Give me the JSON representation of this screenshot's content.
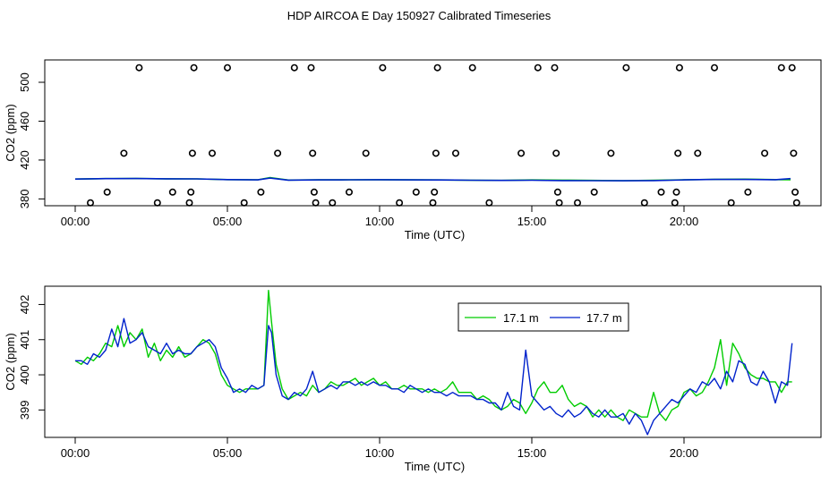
{
  "title": "HDP AIRCOA E  Day 150927  Calibrated Timeseries",
  "colors": {
    "green": "#00cc00",
    "blue": "#0022cc",
    "axis": "#000000"
  },
  "chart_data": [
    {
      "type": "scatter",
      "xlabel": "Time (UTC)",
      "ylabel": "CO2 (ppm)",
      "xlim": [
        -1.0,
        24.5
      ],
      "ylim": [
        373,
        523
      ],
      "xticks": [
        0,
        5,
        10,
        15,
        20
      ],
      "xtick_labels": [
        "00:00",
        "05:00",
        "10:00",
        "15:00",
        "20:00"
      ],
      "yticks": [
        380,
        420,
        460,
        500
      ],
      "ytick_labels": [
        "380",
        "420",
        "460",
        "500"
      ],
      "grid": false,
      "points": [
        {
          "x": 0.5,
          "y": 376
        },
        {
          "x": 1.05,
          "y": 387
        },
        {
          "x": 1.6,
          "y": 427
        },
        {
          "x": 2.1,
          "y": 515
        },
        {
          "x": 2.7,
          "y": 376
        },
        {
          "x": 3.2,
          "y": 387
        },
        {
          "x": 3.75,
          "y": 376
        },
        {
          "x": 3.8,
          "y": 387
        },
        {
          "x": 3.85,
          "y": 427
        },
        {
          "x": 3.9,
          "y": 515
        },
        {
          "x": 4.5,
          "y": 427
        },
        {
          "x": 5.0,
          "y": 515
        },
        {
          "x": 5.55,
          "y": 376
        },
        {
          "x": 6.1,
          "y": 387
        },
        {
          "x": 6.65,
          "y": 427
        },
        {
          "x": 7.2,
          "y": 515
        },
        {
          "x": 7.75,
          "y": 515
        },
        {
          "x": 7.8,
          "y": 427
        },
        {
          "x": 7.85,
          "y": 387
        },
        {
          "x": 7.9,
          "y": 376
        },
        {
          "x": 8.45,
          "y": 376
        },
        {
          "x": 9.0,
          "y": 387
        },
        {
          "x": 9.55,
          "y": 427
        },
        {
          "x": 10.1,
          "y": 515
        },
        {
          "x": 10.65,
          "y": 376
        },
        {
          "x": 11.2,
          "y": 387
        },
        {
          "x": 11.75,
          "y": 376
        },
        {
          "x": 11.8,
          "y": 387
        },
        {
          "x": 11.85,
          "y": 427
        },
        {
          "x": 11.9,
          "y": 515
        },
        {
          "x": 12.5,
          "y": 427
        },
        {
          "x": 13.05,
          "y": 515
        },
        {
          "x": 13.6,
          "y": 376
        },
        {
          "x": 14.65,
          "y": 427
        },
        {
          "x": 15.2,
          "y": 515
        },
        {
          "x": 15.75,
          "y": 515
        },
        {
          "x": 15.8,
          "y": 427
        },
        {
          "x": 15.85,
          "y": 387
        },
        {
          "x": 15.9,
          "y": 376
        },
        {
          "x": 16.5,
          "y": 376
        },
        {
          "x": 17.05,
          "y": 387
        },
        {
          "x": 17.6,
          "y": 427
        },
        {
          "x": 18.1,
          "y": 515
        },
        {
          "x": 18.7,
          "y": 376
        },
        {
          "x": 19.25,
          "y": 387
        },
        {
          "x": 19.7,
          "y": 376
        },
        {
          "x": 19.75,
          "y": 387
        },
        {
          "x": 19.8,
          "y": 427
        },
        {
          "x": 19.85,
          "y": 515
        },
        {
          "x": 20.45,
          "y": 427
        },
        {
          "x": 21.0,
          "y": 515
        },
        {
          "x": 21.55,
          "y": 376
        },
        {
          "x": 22.1,
          "y": 387
        },
        {
          "x": 22.65,
          "y": 427
        },
        {
          "x": 23.2,
          "y": 515
        },
        {
          "x": 23.55,
          "y": 515
        },
        {
          "x": 23.6,
          "y": 427
        },
        {
          "x": 23.65,
          "y": 387
        },
        {
          "x": 23.7,
          "y": 376
        }
      ],
      "series": [
        {
          "name": "17.1 m",
          "color": "#00cc00",
          "x": [
            0,
            1,
            2,
            3,
            4,
            5,
            6,
            6.4,
            7,
            8,
            9,
            10,
            11,
            12,
            13,
            14,
            15,
            16,
            17,
            18,
            19,
            20,
            21,
            22,
            23,
            23.5
          ],
          "y": [
            400.4,
            400.9,
            401.0,
            400.7,
            400.6,
            399.9,
            399.7,
            401.9,
            399.4,
            399.6,
            399.7,
            399.8,
            399.6,
            399.5,
            399.2,
            399.0,
            399.5,
            399.3,
            399.0,
            398.8,
            399.1,
            399.7,
            400.1,
            400.3,
            399.9,
            399.8
          ]
        },
        {
          "name": "17.7 m",
          "color": "#0022cc",
          "x": [
            0,
            1,
            2,
            3,
            4,
            5,
            6,
            6.4,
            7,
            8,
            9,
            10,
            11,
            12,
            13,
            14,
            15,
            16,
            17,
            18,
            19,
            20,
            21,
            22,
            23,
            23.5
          ],
          "y": [
            400.4,
            400.9,
            401.0,
            400.7,
            400.6,
            399.9,
            399.6,
            401.4,
            399.3,
            399.6,
            399.7,
            399.8,
            399.6,
            399.5,
            399.2,
            399.0,
            399.2,
            398.9,
            398.8,
            398.7,
            398.9,
            399.6,
            400.1,
            400.1,
            399.8,
            400.9
          ]
        }
      ]
    },
    {
      "type": "line",
      "xlabel": "Time (UTC)",
      "ylabel": "CO2 (ppm)",
      "xlim": [
        -1.0,
        24.5
      ],
      "ylim": [
        398.22,
        402.52
      ],
      "xticks": [
        0,
        5,
        10,
        15,
        20
      ],
      "xtick_labels": [
        "00:00",
        "05:00",
        "10:00",
        "15:00",
        "20:00"
      ],
      "yticks": [
        399,
        400,
        401,
        402
      ],
      "ytick_labels": [
        "399",
        "400",
        "401",
        "402"
      ],
      "grid": false,
      "legend": "top-right",
      "series": [
        {
          "name": "17.1 m",
          "color": "#00cc00",
          "x": [
            0,
            0.2,
            0.4,
            0.6,
            0.8,
            1.0,
            1.2,
            1.4,
            1.6,
            1.8,
            2.0,
            2.2,
            2.4,
            2.6,
            2.8,
            3.0,
            3.2,
            3.4,
            3.6,
            3.8,
            4.0,
            4.2,
            4.4,
            4.6,
            4.8,
            5.0,
            5.2,
            5.4,
            5.6,
            5.8,
            6.0,
            6.2,
            6.35,
            6.45,
            6.6,
            6.8,
            7.0,
            7.2,
            7.4,
            7.6,
            7.8,
            8.0,
            8.2,
            8.4,
            8.6,
            8.8,
            9.0,
            9.2,
            9.4,
            9.6,
            9.8,
            10.0,
            10.2,
            10.4,
            10.6,
            10.8,
            11.0,
            11.2,
            11.4,
            11.6,
            11.8,
            12.0,
            12.2,
            12.4,
            12.6,
            12.8,
            13.0,
            13.2,
            13.4,
            13.6,
            13.8,
            14.0,
            14.2,
            14.4,
            14.6,
            14.8,
            15.0,
            15.2,
            15.4,
            15.6,
            15.8,
            16.0,
            16.2,
            16.4,
            16.6,
            16.8,
            17.0,
            17.2,
            17.4,
            17.6,
            17.8,
            18.0,
            18.2,
            18.4,
            18.6,
            18.8,
            19.0,
            19.2,
            19.4,
            19.6,
            19.8,
            20.0,
            20.2,
            20.4,
            20.6,
            20.8,
            21.0,
            21.2,
            21.4,
            21.6,
            21.8,
            22.0,
            22.2,
            22.4,
            22.6,
            22.8,
            23.0,
            23.2,
            23.4,
            23.55
          ],
          "y": [
            400.4,
            400.3,
            400.5,
            400.4,
            400.6,
            400.9,
            400.8,
            401.4,
            400.8,
            401.2,
            401.0,
            401.3,
            400.5,
            400.9,
            400.4,
            400.7,
            400.5,
            400.8,
            400.5,
            400.6,
            400.8,
            401.0,
            400.9,
            400.6,
            400.0,
            399.7,
            399.6,
            399.5,
            399.6,
            399.6,
            399.6,
            399.7,
            402.4,
            401.5,
            400.3,
            399.6,
            399.3,
            399.4,
            399.5,
            399.4,
            399.7,
            399.5,
            399.6,
            399.8,
            399.7,
            399.7,
            399.8,
            399.9,
            399.7,
            399.8,
            399.9,
            399.7,
            399.8,
            399.6,
            399.6,
            399.7,
            399.6,
            399.6,
            399.6,
            399.5,
            399.6,
            399.5,
            399.6,
            399.8,
            399.5,
            399.5,
            399.5,
            399.3,
            399.4,
            399.3,
            399.1,
            399.0,
            399.1,
            399.3,
            399.2,
            398.9,
            399.2,
            399.6,
            399.8,
            399.5,
            399.5,
            399.7,
            399.3,
            399.1,
            399.2,
            399.1,
            398.8,
            399.0,
            398.8,
            399.0,
            398.8,
            398.7,
            399.0,
            398.9,
            398.8,
            398.8,
            399.5,
            398.9,
            398.7,
            399.0,
            399.1,
            399.5,
            399.6,
            399.4,
            399.5,
            399.8,
            400.2,
            401.0,
            399.7,
            400.9,
            400.6,
            400.2,
            400.0,
            399.9,
            399.9,
            399.8,
            399.8,
            399.5,
            399.8,
            399.8
          ]
        },
        {
          "name": "17.7 m",
          "color": "#0022cc",
          "x": [
            0,
            0.2,
            0.4,
            0.6,
            0.8,
            1.0,
            1.2,
            1.4,
            1.6,
            1.8,
            2.0,
            2.2,
            2.4,
            2.6,
            2.8,
            3.0,
            3.2,
            3.4,
            3.6,
            3.8,
            4.0,
            4.2,
            4.4,
            4.6,
            4.8,
            5.0,
            5.2,
            5.4,
            5.6,
            5.8,
            6.0,
            6.2,
            6.35,
            6.45,
            6.6,
            6.8,
            7.0,
            7.2,
            7.4,
            7.6,
            7.8,
            8.0,
            8.2,
            8.4,
            8.6,
            8.8,
            9.0,
            9.2,
            9.4,
            9.6,
            9.8,
            10.0,
            10.2,
            10.4,
            10.6,
            10.8,
            11.0,
            11.2,
            11.4,
            11.6,
            11.8,
            12.0,
            12.2,
            12.4,
            12.6,
            12.8,
            13.0,
            13.2,
            13.4,
            13.6,
            13.8,
            14.0,
            14.2,
            14.4,
            14.6,
            14.8,
            15.0,
            15.2,
            15.4,
            15.6,
            15.8,
            16.0,
            16.2,
            16.4,
            16.6,
            16.8,
            17.0,
            17.2,
            17.4,
            17.6,
            17.8,
            18.0,
            18.2,
            18.4,
            18.6,
            18.8,
            19.0,
            19.2,
            19.4,
            19.6,
            19.8,
            20.0,
            20.2,
            20.4,
            20.6,
            20.8,
            21.0,
            21.2,
            21.4,
            21.6,
            21.8,
            22.0,
            22.2,
            22.4,
            22.6,
            22.8,
            23.0,
            23.2,
            23.4,
            23.55
          ],
          "y": [
            400.4,
            400.4,
            400.3,
            400.6,
            400.5,
            400.7,
            401.3,
            400.8,
            401.6,
            400.9,
            401.0,
            401.2,
            400.8,
            400.7,
            400.6,
            400.9,
            400.6,
            400.7,
            400.6,
            400.6,
            400.8,
            400.9,
            401.0,
            400.8,
            400.2,
            399.9,
            399.5,
            399.6,
            399.5,
            399.7,
            399.6,
            399.7,
            401.4,
            401.2,
            400.0,
            399.4,
            399.3,
            399.5,
            399.4,
            399.6,
            400.1,
            399.5,
            399.6,
            399.7,
            399.6,
            399.8,
            399.8,
            399.7,
            399.8,
            399.7,
            399.8,
            399.7,
            399.7,
            399.6,
            399.6,
            399.5,
            399.7,
            399.6,
            399.5,
            399.6,
            399.5,
            399.5,
            399.4,
            399.5,
            399.4,
            399.4,
            399.4,
            399.3,
            399.3,
            399.2,
            399.2,
            399.0,
            399.5,
            399.1,
            399.0,
            400.7,
            399.4,
            399.2,
            399.0,
            399.1,
            398.9,
            398.8,
            399.0,
            398.8,
            398.9,
            399.1,
            398.9,
            398.8,
            399.0,
            398.8,
            398.8,
            398.9,
            398.6,
            398.9,
            398.7,
            398.3,
            398.7,
            398.9,
            399.1,
            399.3,
            399.2,
            399.4,
            399.6,
            399.5,
            399.8,
            399.7,
            399.9,
            399.6,
            400.1,
            399.8,
            400.4,
            400.3,
            399.8,
            399.7,
            400.1,
            399.8,
            399.2,
            399.8,
            399.7,
            400.9
          ]
        }
      ]
    }
  ]
}
